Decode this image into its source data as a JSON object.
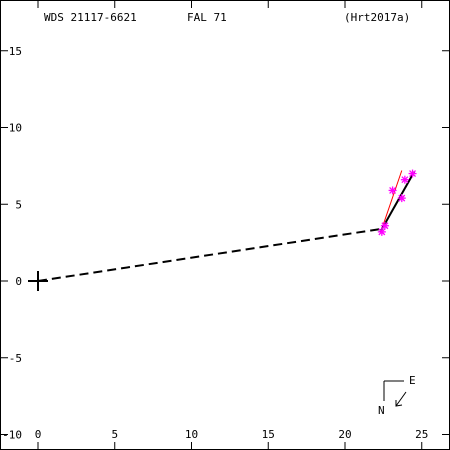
{
  "header": {
    "wds": "WDS 21117-6621",
    "disc": "FAL  71",
    "ref": "(Hrt2017a)"
  },
  "compass": {
    "east": "E",
    "north": "N"
  },
  "chart_data": {
    "type": "scatter",
    "xlim": [
      -2.5,
      27
    ],
    "ylim": [
      -10.5,
      17.5
    ],
    "x_ticks": [
      0,
      5,
      10,
      15,
      20,
      25
    ],
    "y_ticks": [
      -10,
      -5,
      0,
      5,
      10,
      15
    ],
    "x_tick_labels": [
      "0",
      "5",
      "10",
      "15",
      "20",
      "25"
    ],
    "y_tick_labels": [
      "-10",
      "-5",
      "0",
      "5",
      "10",
      "15"
    ],
    "primary": {
      "x": 0,
      "y": 0
    },
    "dashed_line": [
      [
        0,
        0
      ],
      [
        22.4,
        3.4
      ]
    ],
    "orbit_arc": [
      [
        22.3,
        3.2
      ],
      [
        24.5,
        7.1
      ]
    ],
    "observations": [
      {
        "x": 22.4,
        "y": 3.2
      },
      {
        "x": 22.6,
        "y": 3.6
      },
      {
        "x": 23.1,
        "y": 5.9
      },
      {
        "x": 23.7,
        "y": 5.4
      },
      {
        "x": 23.9,
        "y": 6.6
      },
      {
        "x": 24.4,
        "y": 7.0
      }
    ],
    "residual_lines": [
      [
        [
          22.4,
          3.4
        ],
        [
          23.7,
          7.2
        ]
      ]
    ],
    "colors": {
      "observation": "#ff00ff",
      "residual": "#ff0000",
      "orbit": "#000000"
    }
  }
}
